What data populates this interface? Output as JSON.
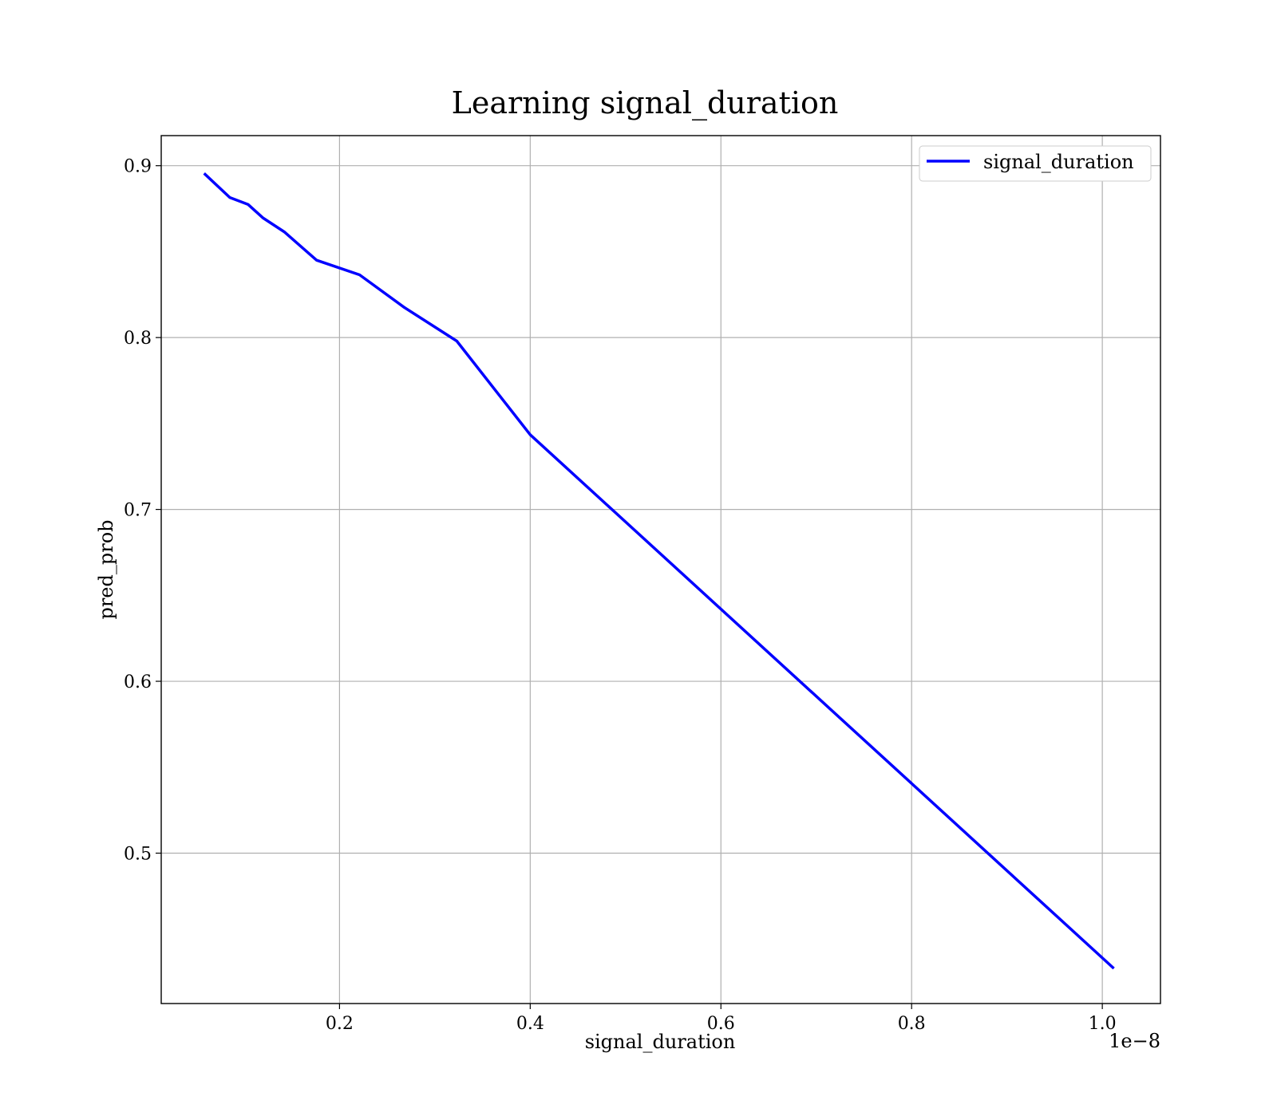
{
  "chart_data": {
    "type": "line",
    "title": "Learning signal_duration",
    "xlabel": "signal_duration",
    "ylabel": "pred_prob",
    "x_offset_label": "1e−8",
    "xlim": [
      0.013,
      1.061
    ],
    "ylim": [
      0.4125,
      0.9175
    ],
    "xticks": [
      0.2,
      0.4,
      0.6,
      0.8,
      1.0
    ],
    "xtick_labels": [
      "0.2",
      "0.4",
      "0.6",
      "0.8",
      "1.0"
    ],
    "yticks": [
      0.5,
      0.6,
      0.7,
      0.8,
      0.9
    ],
    "ytick_labels": [
      "0.5",
      "0.6",
      "0.7",
      "0.8",
      "0.9"
    ],
    "grid": true,
    "legend_position": "top-right",
    "series": [
      {
        "name": "signal_duration",
        "color": "#0000ff",
        "x": [
          0.059,
          0.085,
          0.104,
          0.12,
          0.142,
          0.176,
          0.221,
          0.268,
          0.323,
          0.4,
          1.011
        ],
        "y": [
          0.895,
          0.8815,
          0.8775,
          0.8695,
          0.8615,
          0.845,
          0.8365,
          0.8175,
          0.798,
          0.7435,
          0.4335
        ]
      }
    ]
  }
}
